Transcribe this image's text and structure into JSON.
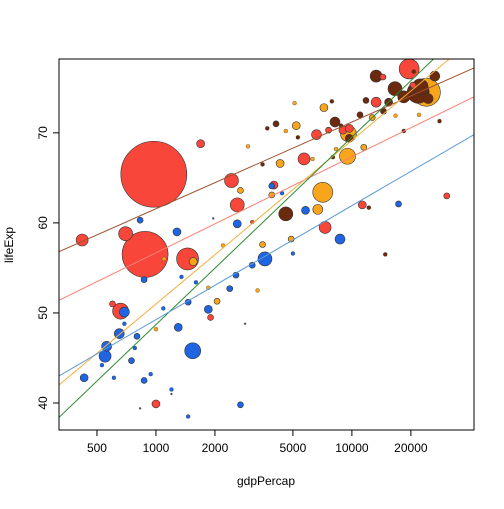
{
  "chart_data": {
    "type": "scatter",
    "title": "",
    "xlabel": "gdpPercap",
    "ylabel": "lifeExp",
    "x_scale": "log",
    "xlim": [
      320,
      42000
    ],
    "ylim": [
      37,
      78.2
    ],
    "x_ticks": [
      500,
      1000,
      2000,
      5000,
      10000,
      20000
    ],
    "x_tick_labels": [
      "500",
      "1000",
      "2000",
      "5000",
      "10000",
      "20000"
    ],
    "y_ticks": [
      40,
      50,
      60,
      70
    ],
    "y_tick_labels": [
      "40",
      "50",
      "60",
      "70"
    ],
    "grid": false,
    "legend": "none",
    "colors": {
      "red": "#f8463a",
      "orange": "#f9a51b",
      "brown": "#6b2a0d",
      "blue": "#1f64e0"
    },
    "fit_lines": [
      {
        "color": "#a0522d",
        "x": [
          320,
          42000
        ],
        "y": [
          56.8,
          77.2
        ]
      },
      {
        "color": "#fa8072",
        "x": [
          320,
          42000
        ],
        "y": [
          51.4,
          74.0
        ]
      },
      {
        "color": "#f5b041",
        "x": [
          320,
          42000
        ],
        "y": [
          42.0,
          80.5
        ]
      },
      {
        "color": "#2e8b2e",
        "x": [
          320,
          42000
        ],
        "y": [
          38.4,
          82.5
        ]
      },
      {
        "color": "#5b9bd5",
        "x": [
          320,
          42000
        ],
        "y": [
          43.0,
          69.8
        ]
      }
    ],
    "series": [
      {
        "color": "#f8463a",
        "points": [
          {
            "x": 975,
            "y": 65.4,
            "size": 33
          },
          {
            "x": 880,
            "y": 56.5,
            "size": 23
          },
          {
            "x": 660,
            "y": 50.2,
            "size": 8
          },
          {
            "x": 700,
            "y": 58.8,
            "size": 7
          },
          {
            "x": 420,
            "y": 58.1,
            "size": 6
          },
          {
            "x": 1450,
            "y": 56.0,
            "size": 11
          },
          {
            "x": 2430,
            "y": 64.7,
            "size": 7
          },
          {
            "x": 2600,
            "y": 62.0,
            "size": 7
          },
          {
            "x": 1690,
            "y": 68.8,
            "size": 4
          },
          {
            "x": 4000,
            "y": 64.2,
            "size": 4
          },
          {
            "x": 5700,
            "y": 67.1,
            "size": 6
          },
          {
            "x": 6600,
            "y": 69.8,
            "size": 5
          },
          {
            "x": 7300,
            "y": 59.5,
            "size": 6
          },
          {
            "x": 7600,
            "y": 70.3,
            "size": 3
          },
          {
            "x": 9000,
            "y": 70.3,
            "size": 4
          },
          {
            "x": 9700,
            "y": 70.5,
            "size": 4
          },
          {
            "x": 11300,
            "y": 62.0,
            "size": 4
          },
          {
            "x": 13300,
            "y": 73.4,
            "size": 5
          },
          {
            "x": 19600,
            "y": 77.1,
            "size": 10
          },
          {
            "x": 14400,
            "y": 76.2,
            "size": 3
          },
          {
            "x": 30500,
            "y": 63.0,
            "size": 3
          },
          {
            "x": 600,
            "y": 51.0,
            "size": 3
          },
          {
            "x": 1000,
            "y": 39.9,
            "size": 4
          },
          {
            "x": 1900,
            "y": 49.5,
            "size": 3
          },
          {
            "x": 3100,
            "y": 60.1,
            "size": 2
          },
          {
            "x": 20500,
            "y": 75.3,
            "size": 3
          }
        ]
      },
      {
        "color": "#f9a51b",
        "points": [
          {
            "x": 24000,
            "y": 74.5,
            "size": 14
          },
          {
            "x": 7100,
            "y": 63.4,
            "size": 10
          },
          {
            "x": 9500,
            "y": 67.4,
            "size": 8
          },
          {
            "x": 9600,
            "y": 69.9,
            "size": 8
          },
          {
            "x": 6700,
            "y": 61.5,
            "size": 5
          },
          {
            "x": 1550,
            "y": 55.7,
            "size": 4
          },
          {
            "x": 4300,
            "y": 66.6,
            "size": 4
          },
          {
            "x": 5200,
            "y": 70.8,
            "size": 4
          },
          {
            "x": 7200,
            "y": 72.8,
            "size": 4
          },
          {
            "x": 2700,
            "y": 63.6,
            "size": 3
          },
          {
            "x": 3900,
            "y": 63.1,
            "size": 3
          },
          {
            "x": 3500,
            "y": 57.6,
            "size": 3
          },
          {
            "x": 4900,
            "y": 58.2,
            "size": 3
          },
          {
            "x": 2050,
            "y": 51.3,
            "size": 3
          },
          {
            "x": 12700,
            "y": 71.7,
            "size": 3
          },
          {
            "x": 11500,
            "y": 68.4,
            "size": 3
          },
          {
            "x": 5100,
            "y": 73.3,
            "size": 2
          },
          {
            "x": 16700,
            "y": 71.9,
            "size": 2
          },
          {
            "x": 22000,
            "y": 72.0,
            "size": 2
          },
          {
            "x": 1100,
            "y": 56.0,
            "size": 2
          },
          {
            "x": 2200,
            "y": 57.5,
            "size": 2
          },
          {
            "x": 1850,
            "y": 52.8,
            "size": 2
          },
          {
            "x": 3300,
            "y": 52.5,
            "size": 2
          },
          {
            "x": 4600,
            "y": 70.2,
            "size": 2
          },
          {
            "x": 6300,
            "y": 67.1,
            "size": 2
          },
          {
            "x": 8300,
            "y": 68.2,
            "size": 2
          },
          {
            "x": 1000,
            "y": 48.2,
            "size": 2
          },
          {
            "x": 2950,
            "y": 68.5,
            "size": 2
          }
        ]
      },
      {
        "color": "#6b2a0d",
        "points": [
          {
            "x": 4600,
            "y": 61.0,
            "size": 7
          },
          {
            "x": 8200,
            "y": 71.2,
            "size": 5
          },
          {
            "x": 13300,
            "y": 76.3,
            "size": 6
          },
          {
            "x": 16600,
            "y": 74.9,
            "size": 7
          },
          {
            "x": 18400,
            "y": 74.0,
            "size": 6
          },
          {
            "x": 21800,
            "y": 74.5,
            "size": 11
          },
          {
            "x": 22300,
            "y": 75.1,
            "size": 8
          },
          {
            "x": 26500,
            "y": 76.3,
            "size": 5
          },
          {
            "x": 24500,
            "y": 73.8,
            "size": 5
          },
          {
            "x": 15400,
            "y": 73.4,
            "size": 4
          },
          {
            "x": 9700,
            "y": 69.4,
            "size": 4
          },
          {
            "x": 14500,
            "y": 72.4,
            "size": 3
          },
          {
            "x": 11800,
            "y": 73.6,
            "size": 3
          },
          {
            "x": 11000,
            "y": 72.0,
            "size": 3
          },
          {
            "x": 7900,
            "y": 73.5,
            "size": 2
          },
          {
            "x": 4100,
            "y": 71.0,
            "size": 3
          },
          {
            "x": 3700,
            "y": 70.5,
            "size": 2
          },
          {
            "x": 5300,
            "y": 69.5,
            "size": 2
          },
          {
            "x": 3500,
            "y": 66.5,
            "size": 2
          },
          {
            "x": 20700,
            "y": 76.8,
            "size": 2
          },
          {
            "x": 18400,
            "y": 70.2,
            "size": 2
          },
          {
            "x": 28000,
            "y": 71.3,
            "size": 2
          },
          {
            "x": 12200,
            "y": 61.7,
            "size": 2
          },
          {
            "x": 14800,
            "y": 56.5,
            "size": 2
          },
          {
            "x": 8000,
            "y": 67.3,
            "size": 2
          },
          {
            "x": 8800,
            "y": 70.8,
            "size": 2
          }
        ]
      },
      {
        "color": "#1f64e0",
        "points": [
          {
            "x": 3600,
            "y": 56.0,
            "size": 7
          },
          {
            "x": 1540,
            "y": 45.8,
            "size": 8
          },
          {
            "x": 550,
            "y": 45.2,
            "size": 6
          },
          {
            "x": 560,
            "y": 46.3,
            "size": 5
          },
          {
            "x": 650,
            "y": 47.7,
            "size": 5
          },
          {
            "x": 690,
            "y": 50.1,
            "size": 5
          },
          {
            "x": 430,
            "y": 42.8,
            "size": 4
          },
          {
            "x": 870,
            "y": 53.7,
            "size": 3
          },
          {
            "x": 830,
            "y": 60.3,
            "size": 3
          },
          {
            "x": 1280,
            "y": 59.0,
            "size": 4
          },
          {
            "x": 1300,
            "y": 48.4,
            "size": 4
          },
          {
            "x": 1460,
            "y": 51.2,
            "size": 3
          },
          {
            "x": 1850,
            "y": 50.4,
            "size": 4
          },
          {
            "x": 2600,
            "y": 59.9,
            "size": 4
          },
          {
            "x": 2560,
            "y": 54.2,
            "size": 3
          },
          {
            "x": 2380,
            "y": 52.7,
            "size": 3
          },
          {
            "x": 3100,
            "y": 55.3,
            "size": 3
          },
          {
            "x": 3900,
            "y": 64.1,
            "size": 3
          },
          {
            "x": 5800,
            "y": 61.4,
            "size": 4
          },
          {
            "x": 8700,
            "y": 58.2,
            "size": 5
          },
          {
            "x": 2700,
            "y": 39.8,
            "size": 3
          },
          {
            "x": 1460,
            "y": 38.5,
            "size": 2
          },
          {
            "x": 870,
            "y": 42.5,
            "size": 3
          },
          {
            "x": 800,
            "y": 47.4,
            "size": 3
          },
          {
            "x": 750,
            "y": 44.7,
            "size": 3
          },
          {
            "x": 940,
            "y": 43.2,
            "size": 2
          },
          {
            "x": 610,
            "y": 42.8,
            "size": 2
          },
          {
            "x": 1600,
            "y": 53.4,
            "size": 2
          },
          {
            "x": 1200,
            "y": 41.5,
            "size": 2
          },
          {
            "x": 4400,
            "y": 63.3,
            "size": 2
          },
          {
            "x": 17300,
            "y": 62.1,
            "size": 3
          },
          {
            "x": 5000,
            "y": 56.6,
            "size": 2
          },
          {
            "x": 1350,
            "y": 54.0,
            "size": 2
          },
          {
            "x": 530,
            "y": 44.2,
            "size": 2
          },
          {
            "x": 780,
            "y": 46.1,
            "size": 2
          },
          {
            "x": 1090,
            "y": 50.5,
            "size": 2
          },
          {
            "x": 690,
            "y": 48.8,
            "size": 2
          }
        ]
      },
      {
        "color": "#555555",
        "points": [
          {
            "x": 1200,
            "y": 41.0,
            "size": 1
          },
          {
            "x": 2850,
            "y": 48.8,
            "size": 1
          },
          {
            "x": 830,
            "y": 39.4,
            "size": 1
          },
          {
            "x": 1960,
            "y": 60.5,
            "size": 1
          }
        ]
      }
    ]
  }
}
